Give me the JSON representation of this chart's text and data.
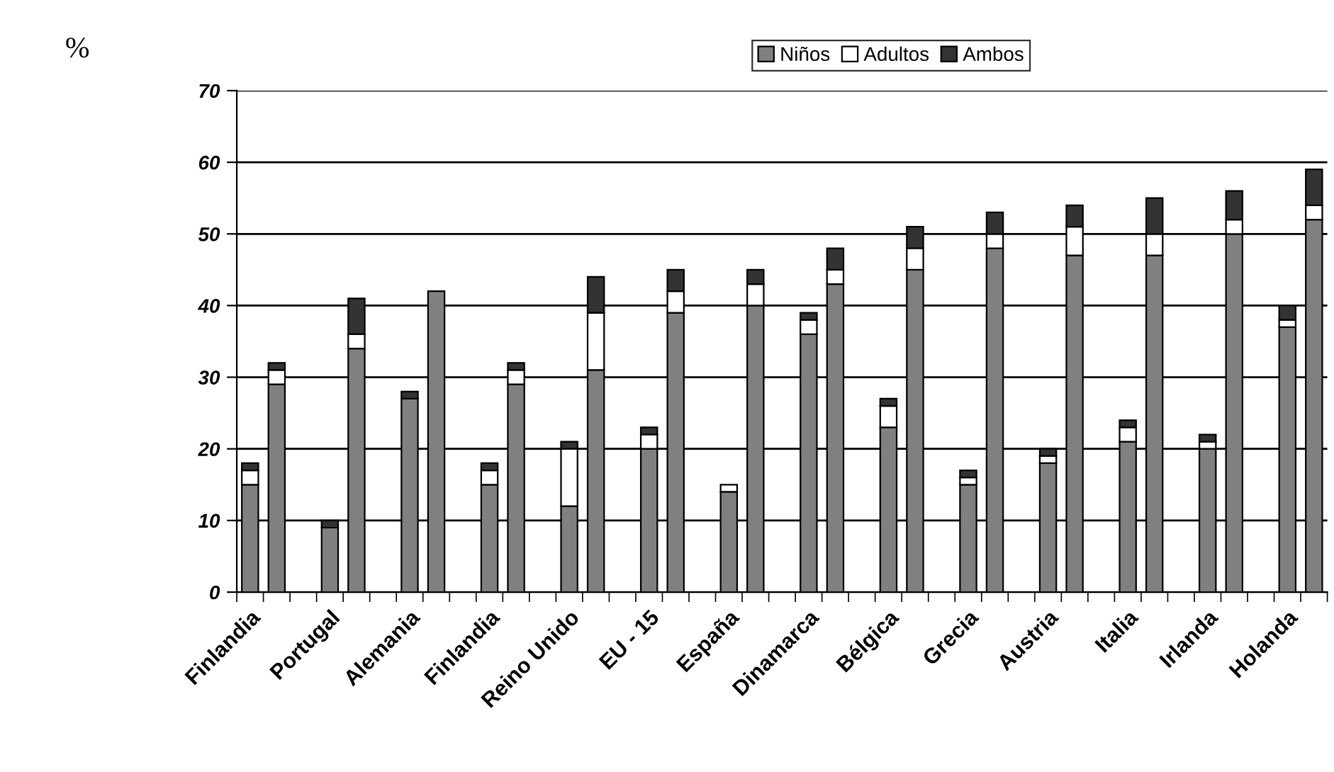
{
  "chart_data": {
    "type": "bar",
    "stacked": true,
    "ylabel": "%",
    "categories": [
      "Finlandia",
      null,
      null,
      "Portugal",
      null,
      null,
      "Alemania",
      null,
      null,
      "Finlandia",
      null,
      null,
      "Reino Unido",
      null,
      null,
      "EU - 15",
      null,
      null,
      "España",
      null,
      null,
      "Dinamarca",
      null,
      null,
      "Bélgica",
      null,
      null,
      "Grecia",
      null,
      null,
      "Austria",
      null,
      null,
      "Italia",
      null,
      null,
      "Irlanda",
      null,
      null,
      "Holanda",
      null
    ],
    "series": [
      {
        "name": "Niños",
        "color": "#808080",
        "values": [
          15,
          29,
          null,
          9,
          34,
          null,
          27,
          42,
          null,
          15,
          29,
          null,
          12,
          31,
          null,
          20,
          39,
          null,
          14,
          40,
          null,
          36,
          43,
          null,
          23,
          45,
          null,
          15,
          48,
          null,
          18,
          47,
          null,
          21,
          47,
          null,
          20,
          50,
          null,
          37,
          52
        ]
      },
      {
        "name": "Adultos",
        "color": "#ffffff",
        "values": [
          2,
          2,
          null,
          0,
          2,
          null,
          0,
          0,
          null,
          2,
          2,
          null,
          8,
          8,
          null,
          2,
          3,
          null,
          1,
          3,
          null,
          2,
          2,
          null,
          3,
          3,
          null,
          1,
          2,
          null,
          1,
          4,
          null,
          2,
          3,
          null,
          1,
          2,
          null,
          1,
          2
        ]
      },
      {
        "name": "Ambos",
        "color": "#333333",
        "values": [
          1,
          1,
          null,
          1,
          5,
          null,
          1,
          0,
          null,
          1,
          1,
          null,
          1,
          5,
          null,
          1,
          3,
          null,
          0,
          2,
          null,
          1,
          3,
          null,
          1,
          3,
          null,
          1,
          3,
          null,
          1,
          3,
          null,
          1,
          5,
          null,
          1,
          4,
          null,
          2,
          5
        ]
      }
    ],
    "ylim": [
      0,
      70
    ],
    "yticks": [
      0,
      10,
      20,
      30,
      40,
      50,
      60,
      70
    ],
    "grid": "y",
    "legend": "top"
  }
}
